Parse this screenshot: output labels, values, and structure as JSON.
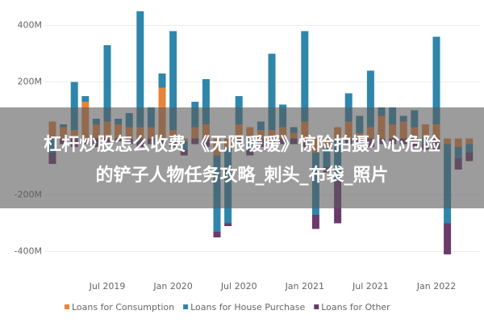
{
  "chart_data": {
    "type": "bar",
    "stacked": true,
    "categories": [
      null,
      null,
      null,
      null,
      null,
      "Jul 2019",
      null,
      null,
      null,
      null,
      null,
      "Jan 2020",
      null,
      null,
      null,
      null,
      null,
      "Jul 2020",
      null,
      null,
      null,
      null,
      null,
      "Jan 2021",
      null,
      null,
      null,
      null,
      null,
      "Jul 2021",
      null,
      null,
      null,
      null,
      null,
      "Jan 2022",
      null,
      null,
      null
    ],
    "series": [
      {
        "name": "Loans for Consumption",
        "color": "#e8833a",
        "values": [
          60,
          40,
          30,
          130,
          50,
          60,
          50,
          40,
          40,
          40,
          180,
          30,
          -10,
          40,
          50,
          -60,
          -30,
          50,
          40,
          30,
          30,
          40,
          20,
          60,
          -50,
          -30,
          40,
          60,
          20,
          40,
          80,
          50,
          60,
          40,
          50,
          50,
          -20,
          -30,
          -20
        ]
      },
      {
        "name": "Loans for House Purchase",
        "color": "#2e86ab",
        "values": [
          -50,
          10,
          170,
          20,
          20,
          270,
          20,
          50,
          410,
          70,
          50,
          350,
          -30,
          90,
          160,
          -270,
          -270,
          100,
          -40,
          30,
          270,
          80,
          20,
          320,
          -220,
          -70,
          -150,
          100,
          60,
          200,
          30,
          60,
          20,
          60,
          -20,
          310,
          -280,
          -40,
          -30
        ]
      },
      {
        "name": "Loans for Other",
        "color": "#6b3a6b",
        "values": [
          -40,
          -20,
          -30,
          -20,
          -30,
          -20,
          -10,
          -20,
          -30,
          -20,
          -20,
          -30,
          -20,
          -20,
          -30,
          -20,
          -10,
          -20,
          -20,
          -30,
          -20,
          -20,
          -20,
          -30,
          -50,
          -20,
          -150,
          -20,
          -20,
          -30,
          -20,
          -20,
          -20,
          -30,
          -20,
          -40,
          -110,
          -40,
          -30
        ]
      }
    ],
    "ylim": [
      -460,
      490
    ],
    "yticks": [
      {
        "value": -400,
        "label": "-400M"
      },
      {
        "value": -200,
        "label": "-200M"
      },
      {
        "value": 200,
        "label": "200M"
      },
      {
        "value": 400,
        "label": "400M"
      }
    ],
    "grid": true,
    "legend": "bottom"
  },
  "caption": [
    "杠杆炒股怎么收费 《无限暖暖》惊险拍摄小心危险",
    "的铲子人物任务攻略_刺头_布袋_照片"
  ]
}
